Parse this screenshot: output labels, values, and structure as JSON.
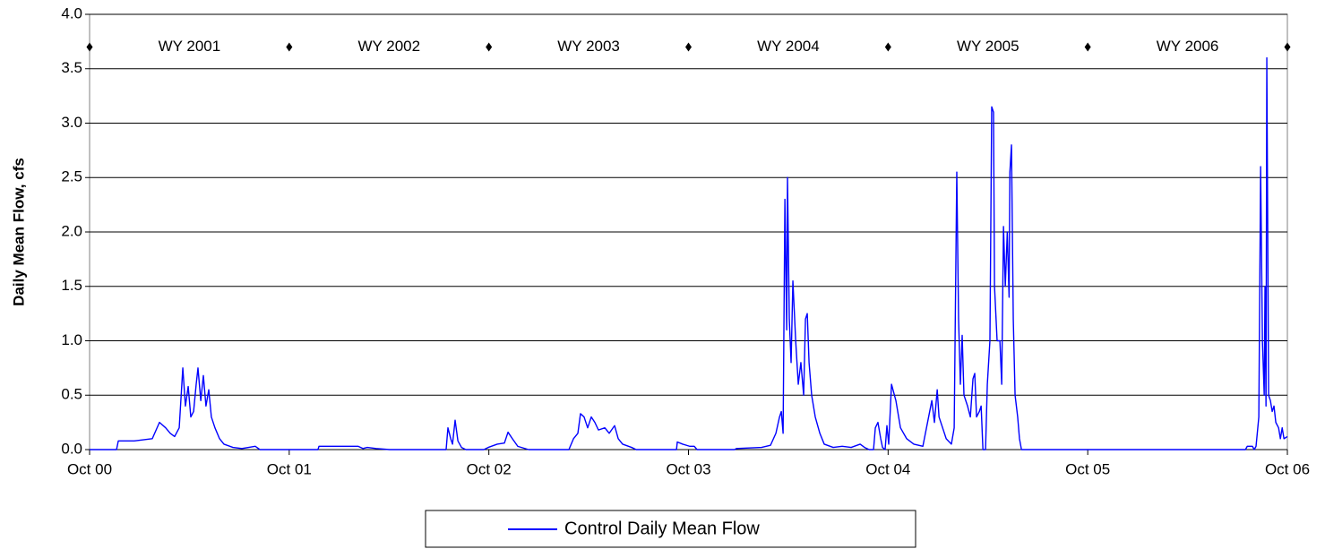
{
  "chart_data": {
    "type": "line",
    "y_label": "Daily Mean Flow, cfs",
    "xlim": [
      2000.75,
      2006.75
    ],
    "ylim": [
      0,
      4
    ],
    "xticks": [
      {
        "value": 2000.75,
        "label": "Oct 00"
      },
      {
        "value": 2001.75,
        "label": "Oct 01"
      },
      {
        "value": 2002.75,
        "label": "Oct 02"
      },
      {
        "value": 2003.75,
        "label": "Oct 03"
      },
      {
        "value": 2004.75,
        "label": "Oct 04"
      },
      {
        "value": 2005.75,
        "label": "Oct 05"
      },
      {
        "value": 2006.75,
        "label": "Oct 06"
      }
    ],
    "yticks": [
      {
        "value": 0,
        "label": "0.0"
      },
      {
        "value": 0.5,
        "label": "0.5"
      },
      {
        "value": 1,
        "label": "1.0"
      },
      {
        "value": 1.5,
        "label": "1.5"
      },
      {
        "value": 2,
        "label": "2.0"
      },
      {
        "value": 2.5,
        "label": "2.5"
      },
      {
        "value": 3,
        "label": "3.0"
      },
      {
        "value": 3.5,
        "label": "3.5"
      },
      {
        "value": 4,
        "label": "4.0"
      }
    ],
    "grid": true,
    "legend": "bottom",
    "markers": {
      "color": "#000000",
      "x": [
        2000.75,
        2001.75,
        2002.75,
        2003.75,
        2004.75,
        2005.75,
        2006.75
      ],
      "y": [
        3.7,
        3.7,
        3.7,
        3.7,
        3.7,
        3.7,
        3.7
      ]
    },
    "annotations": [
      {
        "text": "WY 2001",
        "x": 2001.25,
        "y": 3.7
      },
      {
        "text": "WY 2002",
        "x": 2002.25,
        "y": 3.7
      },
      {
        "text": "WY 2003",
        "x": 2003.25,
        "y": 3.7
      },
      {
        "text": "WY 2004",
        "x": 2004.25,
        "y": 3.7
      },
      {
        "text": "WY 2005",
        "x": 2005.25,
        "y": 3.7
      },
      {
        "text": "WY 2006",
        "x": 2006.25,
        "y": 3.7
      }
    ],
    "x": [
      2000.75,
      2000.885,
      2000.894,
      2000.974,
      2001.064,
      2001.1,
      2001.131,
      2001.154,
      2001.176,
      2001.199,
      2001.217,
      2001.23,
      2001.244,
      2001.257,
      2001.271,
      2001.284,
      2001.293,
      2001.307,
      2001.32,
      2001.333,
      2001.347,
      2001.36,
      2001.378,
      2001.401,
      2001.423,
      2001.468,
      2001.513,
      2001.58,
      2001.603,
      2001.894,
      2001.899,
      2002.096,
      2002.119,
      2002.141,
      2002.186,
      2002.253,
      2002.536,
      2002.545,
      2002.559,
      2002.568,
      2002.581,
      2002.595,
      2002.613,
      2002.635,
      2002.725,
      2002.747,
      2002.792,
      2002.828,
      2002.846,
      2002.868,
      2002.895,
      2002.949,
      2003.151,
      2003.174,
      2003.196,
      2003.209,
      2003.227,
      2003.245,
      2003.263,
      2003.281,
      2003.299,
      2003.331,
      2003.353,
      2003.38,
      2003.398,
      2003.42,
      2003.465,
      2003.488,
      2003.69,
      2003.694,
      2003.721,
      2003.757,
      2003.779,
      2003.793,
      2003.981,
      2003.99,
      2004.116,
      2004.161,
      2004.188,
      2004.206,
      2004.215,
      2004.224,
      2004.233,
      2004.242,
      2004.246,
      2004.255,
      2004.264,
      2004.273,
      2004.287,
      2004.3,
      2004.313,
      2004.327,
      2004.336,
      2004.345,
      2004.354,
      2004.367,
      2004.385,
      2004.408,
      2004.43,
      2004.475,
      2004.52,
      2004.565,
      2004.61,
      2004.632,
      2004.655,
      2004.677,
      2004.686,
      2004.699,
      2004.713,
      2004.722,
      2004.735,
      2004.744,
      2004.753,
      2004.767,
      2004.789,
      2004.812,
      2004.843,
      2004.879,
      2004.924,
      2004.969,
      2004.982,
      2004.996,
      2005.005,
      2005.023,
      2005.041,
      2005.067,
      2005.081,
      2005.094,
      2005.103,
      2005.112,
      2005.121,
      2005.13,
      2005.148,
      2005.162,
      2005.175,
      2005.184,
      2005.193,
      2005.207,
      2005.216,
      2005.225,
      2005.238,
      2005.247,
      2005.26,
      2005.269,
      2005.278,
      2005.283,
      2005.296,
      2005.31,
      2005.319,
      2005.328,
      2005.337,
      2005.347,
      2005.356,
      2005.36,
      2005.368,
      2005.377,
      2005.386,
      2005.399,
      2005.408,
      2005.418,
      2006.54,
      2006.549,
      2006.575,
      2006.584,
      2006.593,
      2006.607,
      2006.616,
      2006.625,
      2006.634,
      2006.638,
      2006.643,
      2006.647,
      2006.656,
      2006.665,
      2006.674,
      2006.683,
      2006.692,
      2006.706,
      2006.715,
      2006.724,
      2006.733,
      2006.75
    ],
    "series": [
      {
        "name": "Control Daily Mean Flow",
        "color": "#0000ff",
        "values": [
          0,
          0,
          0.08,
          0.08,
          0.1,
          0.25,
          0.2,
          0.15,
          0.12,
          0.2,
          0.75,
          0.4,
          0.58,
          0.3,
          0.35,
          0.6,
          0.75,
          0.45,
          0.68,
          0.4,
          0.55,
          0.3,
          0.2,
          0.1,
          0.05,
          0.02,
          0.01,
          0.03,
          0,
          0,
          0.03,
          0.03,
          0.01,
          0.02,
          0.01,
          0,
          0,
          0.2,
          0.1,
          0.05,
          0.27,
          0.08,
          0.02,
          0,
          0,
          0.02,
          0.05,
          0.06,
          0.16,
          0.1,
          0.03,
          0,
          0,
          0.1,
          0.15,
          0.33,
          0.3,
          0.2,
          0.3,
          0.25,
          0.18,
          0.2,
          0.15,
          0.22,
          0.1,
          0.05,
          0.02,
          0,
          0,
          0.07,
          0.05,
          0.03,
          0.03,
          0,
          0,
          0.01,
          0.02,
          0.04,
          0.15,
          0.3,
          0.35,
          0.15,
          2.3,
          1.1,
          2.5,
          1.2,
          0.8,
          1.55,
          1.0,
          0.6,
          0.8,
          0.5,
          1.2,
          1.25,
          0.8,
          0.5,
          0.3,
          0.15,
          0.05,
          0.02,
          0.03,
          0.02,
          0.05,
          0.02,
          0,
          0,
          0.2,
          0.25,
          0.1,
          0.02,
          0,
          0.22,
          0.05,
          0.6,
          0.45,
          0.2,
          0.1,
          0.05,
          0.03,
          0.45,
          0.25,
          0.55,
          0.3,
          0.2,
          0.1,
          0.05,
          0.2,
          2.55,
          1.2,
          0.6,
          1.05,
          0.5,
          0.4,
          0.3,
          0.65,
          0.7,
          0.3,
          0.35,
          0.4,
          0,
          0,
          0.6,
          1.0,
          3.15,
          3.1,
          1.5,
          1.0,
          1.0,
          0.6,
          2.05,
          1.5,
          2.0,
          1.4,
          2.55,
          2.8,
          1.2,
          0.5,
          0.3,
          0.1,
          0,
          0,
          0.03,
          0.03,
          0,
          0.03,
          0.3,
          2.6,
          1.0,
          0.5,
          1.5,
          0.4,
          3.6,
          0.5,
          0.45,
          0.35,
          0.4,
          0.25,
          0.2,
          0.1,
          0.2,
          0.1,
          0.12
        ]
      }
    ]
  }
}
